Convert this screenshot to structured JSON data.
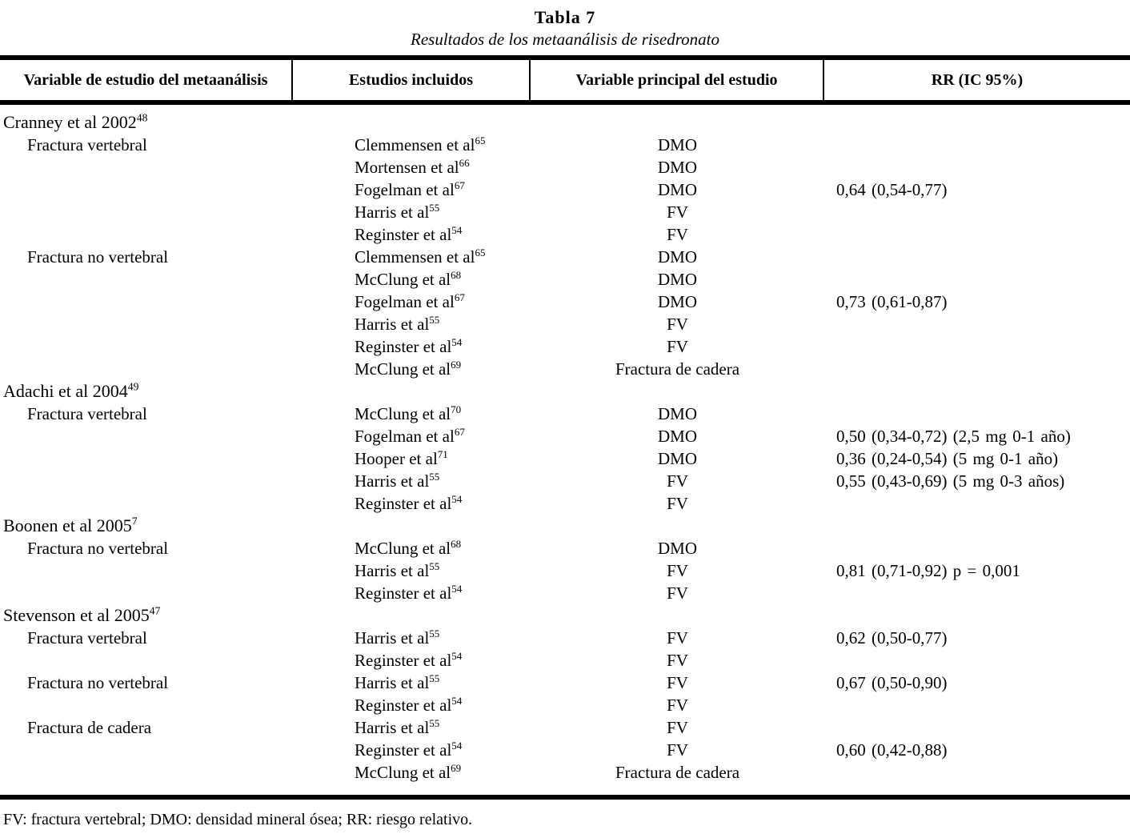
{
  "table": {
    "title": "Tabla 7",
    "subtitle": "Resultados de los metaanálisis de risedronato",
    "columns": [
      "Variable de estudio del metaanálisis",
      "Estudios incluidos",
      "Variable principal del estudio",
      "RR (IC 95%)"
    ],
    "rows": [
      {
        "group": true,
        "variable": "Cranney et al 2002",
        "variable_sup": "48",
        "study": "",
        "study_sup": "",
        "endpoint": "",
        "rr": ""
      },
      {
        "indent": true,
        "variable": "Fractura vertebral",
        "study": "Clemmensen et al",
        "study_sup": "65",
        "endpoint": "DMO",
        "rr": ""
      },
      {
        "variable": "",
        "study": "Mortensen et al",
        "study_sup": "66",
        "endpoint": "DMO",
        "rr": ""
      },
      {
        "variable": "",
        "study": "Fogelman et al",
        "study_sup": "67",
        "endpoint": "DMO",
        "rr": "0,64 (0,54-0,77)"
      },
      {
        "variable": "",
        "study": "Harris et al",
        "study_sup": "55",
        "endpoint": "FV",
        "rr": ""
      },
      {
        "variable": "",
        "study": "Reginster et al",
        "study_sup": "54",
        "endpoint": "FV",
        "rr": ""
      },
      {
        "indent": true,
        "variable": "Fractura no vertebral",
        "study": "Clemmensen et al",
        "study_sup": "65",
        "endpoint": "DMO",
        "rr": ""
      },
      {
        "variable": "",
        "study": "McClung et al",
        "study_sup": "68",
        "endpoint": "DMO",
        "rr": ""
      },
      {
        "variable": "",
        "study": "Fogelman et al",
        "study_sup": "67",
        "endpoint": "DMO",
        "rr": "0,73 (0,61-0,87)"
      },
      {
        "variable": "",
        "study": "Harris et al",
        "study_sup": "55",
        "endpoint": "FV",
        "rr": ""
      },
      {
        "variable": "",
        "study": "Reginster et al",
        "study_sup": "54",
        "endpoint": "FV",
        "rr": ""
      },
      {
        "variable": "",
        "study": "McClung et al",
        "study_sup": "69",
        "endpoint": "Fractura de cadera",
        "rr": ""
      },
      {
        "group": true,
        "variable": "Adachi et al 2004",
        "variable_sup": "49",
        "study": "",
        "study_sup": "",
        "endpoint": "",
        "rr": ""
      },
      {
        "indent": true,
        "variable": "Fractura vertebral",
        "study": "McClung et al",
        "study_sup": "70",
        "endpoint": "DMO",
        "rr": ""
      },
      {
        "variable": "",
        "study": "Fogelman et al",
        "study_sup": "67",
        "endpoint": "DMO",
        "rr": "0,50 (0,34-0,72) (2,5 mg 0-1 año)"
      },
      {
        "variable": "",
        "study": "Hooper et al",
        "study_sup": "71",
        "endpoint": "DMO",
        "rr": "0,36 (0,24-0,54) (5 mg 0-1 año)"
      },
      {
        "variable": "",
        "study": "Harris et al",
        "study_sup": "55",
        "endpoint": "FV",
        "rr": "0,55 (0,43-0,69) (5 mg 0-3 años)"
      },
      {
        "variable": "",
        "study": "Reginster et al",
        "study_sup": "54",
        "endpoint": "FV",
        "rr": ""
      },
      {
        "group": true,
        "variable": "Boonen et al 2005",
        "variable_sup": "7",
        "study": "",
        "study_sup": "",
        "endpoint": "",
        "rr": ""
      },
      {
        "indent": true,
        "variable": "Fractura no vertebral",
        "study": "McClung et al",
        "study_sup": "68",
        "endpoint": "DMO",
        "rr": ""
      },
      {
        "variable": "",
        "study": "Harris et al",
        "study_sup": "55",
        "endpoint": "FV",
        "rr": "0,81 (0,71-0,92) p = 0,001"
      },
      {
        "variable": "",
        "study": "Reginster et al",
        "study_sup": "54",
        "endpoint": "FV",
        "rr": ""
      },
      {
        "group": true,
        "variable": "Stevenson et al 2005",
        "variable_sup": "47",
        "study": "",
        "study_sup": "",
        "endpoint": "",
        "rr": ""
      },
      {
        "indent": true,
        "variable": "Fractura vertebral",
        "study": "Harris et al",
        "study_sup": "55",
        "endpoint": "FV",
        "rr": "0,62 (0,50-0,77)"
      },
      {
        "variable": "",
        "study": "Reginster et al",
        "study_sup": "54",
        "endpoint": "FV",
        "rr": ""
      },
      {
        "indent": true,
        "variable": "Fractura no vertebral",
        "study": "Harris et al",
        "study_sup": "55",
        "endpoint": "FV",
        "rr": "0,67 (0,50-0,90)"
      },
      {
        "variable": "",
        "study": "Reginster et al",
        "study_sup": "54",
        "endpoint": "FV",
        "rr": ""
      },
      {
        "indent": true,
        "variable": "Fractura de cadera",
        "study": "Harris et al",
        "study_sup": "55",
        "endpoint": "FV",
        "rr": ""
      },
      {
        "variable": "",
        "study": "Reginster et al",
        "study_sup": "54",
        "endpoint": "FV",
        "rr": "0,60 (0,42-0,88)"
      },
      {
        "variable": "",
        "study": "McClung et al",
        "study_sup": "69",
        "endpoint": "Fractura de cadera",
        "rr": ""
      }
    ],
    "footnote": "FV: fractura vertebral; DMO: densidad mineral ósea; RR: riesgo relativo.",
    "colors": {
      "text": "#000000",
      "background": "#ffffff",
      "rule": "#000000"
    }
  }
}
